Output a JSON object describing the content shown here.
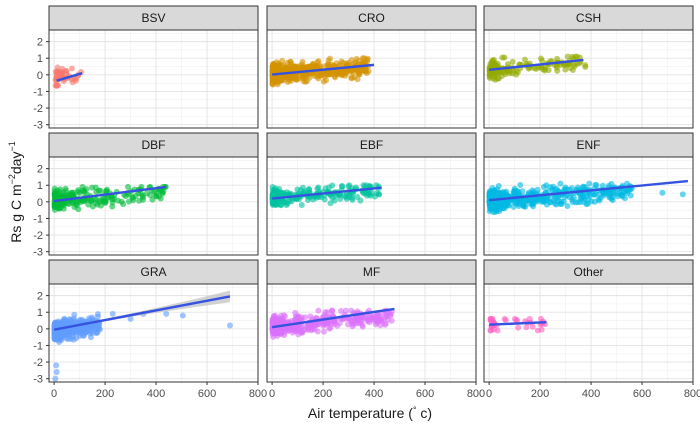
{
  "chart_data": {
    "type": "scatter",
    "layout": "facet-grid 3x3",
    "x_label_prefix": "Air temperature (",
    "x_label_degree": "°",
    "x_label_suffix": " c)",
    "y_label_main": "Rs g C m",
    "y_label_exp1": "−2",
    "y_label_mid": "day",
    "y_label_exp2": "−1",
    "xlim": [
      -20,
      800
    ],
    "ylim": [
      -3.2,
      2.7
    ],
    "x_ticks": [
      0,
      200,
      400,
      600,
      800
    ],
    "y_ticks": [
      -3,
      -2,
      -1,
      0,
      1,
      2
    ],
    "grid": true,
    "trend_color": "#3553e0",
    "ci_color": "#bfbfbf",
    "panels": [
      {
        "name": "BSV",
        "color": "#f8766d",
        "x_range": [
          5,
          110
        ],
        "y_spread": [
          -0.9,
          0.5
        ],
        "y_center_base": -0.25,
        "slope": 0.0038,
        "n": 45,
        "fit": [
          [
            10,
            -0.35
          ],
          [
            110,
            0.1
          ]
        ],
        "outliers": []
      },
      {
        "name": "CRO",
        "color": "#d39200",
        "x_range": [
          2,
          380
        ],
        "y_spread": [
          -1.2,
          1.0
        ],
        "y_center_base": 0.05,
        "slope": 0.0012,
        "n": 480,
        "fit": [
          [
            0,
            0.02
          ],
          [
            400,
            0.6
          ]
        ],
        "outliers": []
      },
      {
        "name": "CSH",
        "color": "#93aa00",
        "x_range": [
          2,
          380
        ],
        "y_spread": [
          -0.8,
          1.1
        ],
        "y_center_base": 0.25,
        "slope": 0.0016,
        "n": 140,
        "fit": [
          [
            0,
            0.3
          ],
          [
            370,
            0.9
          ]
        ],
        "outliers": []
      },
      {
        "name": "DBF",
        "color": "#00ba38",
        "x_range": [
          2,
          450
        ],
        "y_spread": [
          -0.8,
          0.9
        ],
        "y_center_base": 0.1,
        "slope": 0.0012,
        "n": 220,
        "fit": [
          [
            0,
            0.05
          ],
          [
            440,
            0.9
          ]
        ],
        "outliers": []
      },
      {
        "name": "EBF",
        "color": "#00c19f",
        "x_range": [
          2,
          420
        ],
        "y_spread": [
          -0.5,
          1.0
        ],
        "y_center_base": 0.25,
        "slope": 0.0011,
        "n": 220,
        "fit": [
          [
            0,
            0.2
          ],
          [
            430,
            0.85
          ]
        ],
        "outliers": []
      },
      {
        "name": "ENF",
        "color": "#00b9e3",
        "x_range": [
          2,
          560
        ],
        "y_spread": [
          -0.8,
          1.1
        ],
        "y_center_base": 0.1,
        "slope": 0.001,
        "n": 520,
        "fit": [
          [
            0,
            0.1
          ],
          [
            780,
            1.25
          ]
        ],
        "outliers": [
          [
            680,
            0.55
          ],
          [
            760,
            0.45
          ]
        ]
      },
      {
        "name": "GRA",
        "color": "#619cff",
        "x_range": [
          2,
          180
        ],
        "y_spread": [
          -1.5,
          1.1
        ],
        "y_center_base": -0.1,
        "slope": 0.002,
        "n": 420,
        "fit": [
          [
            0,
            -0.05
          ],
          [
            690,
            1.95
          ]
        ],
        "outliers": [
          [
            230,
            0.9
          ],
          [
            300,
            0.6
          ],
          [
            350,
            0.9
          ],
          [
            440,
            0.9
          ],
          [
            505,
            0.8
          ],
          [
            690,
            0.2
          ],
          [
            5,
            -3.0
          ],
          [
            10,
            -2.6
          ],
          [
            8,
            -2.2
          ]
        ]
      },
      {
        "name": "MF",
        "color": "#db72fb",
        "x_range": [
          2,
          480
        ],
        "y_spread": [
          -1.2,
          1.1
        ],
        "y_center_base": 0.15,
        "slope": 0.0013,
        "n": 400,
        "fit": [
          [
            0,
            0.1
          ],
          [
            480,
            1.2
          ]
        ],
        "outliers": [
          [
            470,
            1.05
          ],
          [
            460,
            0.95
          ]
        ]
      },
      {
        "name": "Other",
        "color": "#ff61c3",
        "x_range": [
          5,
          225
        ],
        "y_spread": [
          -0.1,
          0.6
        ],
        "y_center_base": 0.25,
        "slope": 0.0006,
        "n": 40,
        "fit": [
          [
            0,
            0.25
          ],
          [
            225,
            0.4
          ]
        ],
        "outliers": []
      }
    ]
  }
}
